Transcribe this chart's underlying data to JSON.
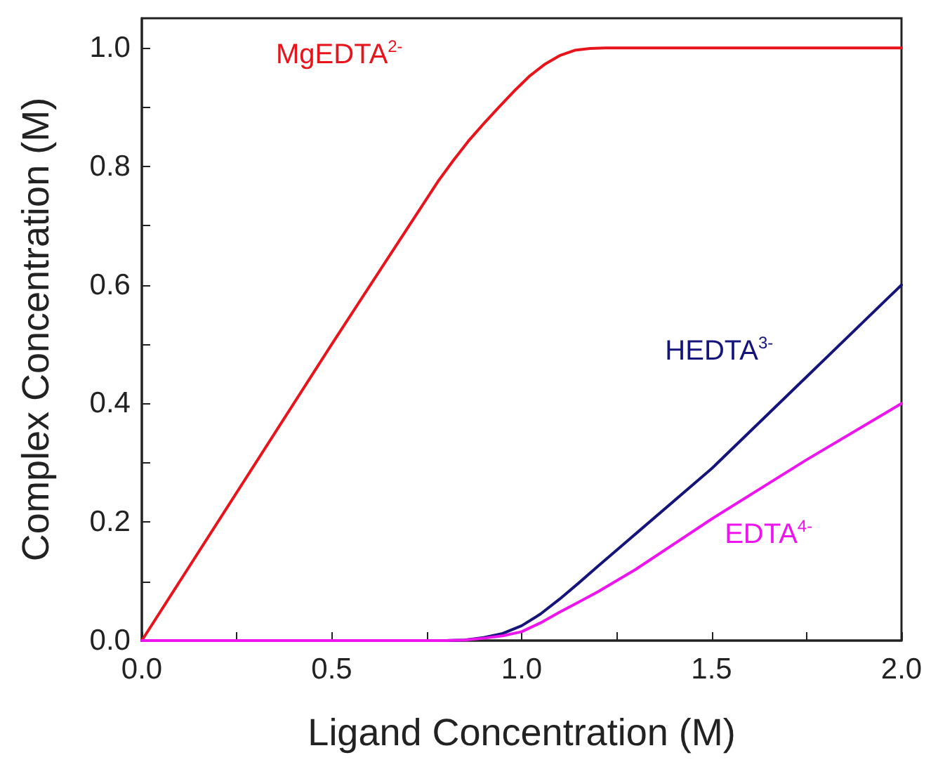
{
  "chart_data": {
    "type": "line",
    "xlabel": "Ligand Concentration (M)",
    "ylabel": "Complex Concentration (M)",
    "xlim": [
      0,
      2.0
    ],
    "ylim": [
      0,
      1.05
    ],
    "xticks": [
      {
        "value": 0,
        "label": "0.0"
      },
      {
        "value": 0.25,
        "label": null
      },
      {
        "value": 0.5,
        "label": "0.5"
      },
      {
        "value": 0.75,
        "label": null
      },
      {
        "value": 1,
        "label": "1.0"
      },
      {
        "value": 1.25,
        "label": null
      },
      {
        "value": 1.5,
        "label": "1.5"
      },
      {
        "value": 1.75,
        "label": null
      },
      {
        "value": 2,
        "label": "2.0"
      }
    ],
    "yticks": [
      {
        "value": 0,
        "label": "0.0"
      },
      {
        "value": 0.1,
        "label": null
      },
      {
        "value": 0.2,
        "label": "0.2"
      },
      {
        "value": 0.3,
        "label": null
      },
      {
        "value": 0.4,
        "label": "0.4"
      },
      {
        "value": 0.5,
        "label": null
      },
      {
        "value": 0.6,
        "label": "0.6"
      },
      {
        "value": 0.7,
        "label": null
      },
      {
        "value": 0.8,
        "label": "0.8"
      },
      {
        "value": 0.9,
        "label": null
      },
      {
        "value": 1,
        "label": "1.0"
      }
    ],
    "grid": false,
    "legend": false,
    "marker": "none",
    "line_style": "solid",
    "series": [
      {
        "name": "MgEDTA$^{2-}$",
        "color": "#e8141c",
        "x": [
          0,
          0.5,
          0.78,
          0.82,
          0.86,
          0.9,
          0.94,
          0.98,
          1.02,
          1.06,
          1.1,
          1.14,
          1.18,
          1.22,
          2.0
        ],
        "values": [
          0,
          0.5,
          0.775,
          0.81,
          0.843,
          0.872,
          0.9,
          0.927,
          0.952,
          0.972,
          0.987,
          0.996,
          0.999,
          1.0,
          1.0
        ]
      },
      {
        "name": "HEDTA$^{3-}$",
        "color": "#14147a",
        "x": [
          0,
          0.8,
          0.85,
          0.9,
          0.95,
          1.0,
          1.05,
          1.1,
          1.15,
          1.2,
          1.3,
          1.5,
          1.75,
          2.0
        ],
        "values": [
          0,
          0,
          0.001,
          0.005,
          0.012,
          0.025,
          0.045,
          0.07,
          0.097,
          0.125,
          0.18,
          0.29,
          0.445,
          0.6
        ]
      },
      {
        "name": "EDTA$^{4-}$",
        "color": "#ee14ee",
        "x": [
          0,
          0.8,
          0.85,
          0.9,
          0.95,
          1.0,
          1.05,
          1.1,
          1.15,
          1.2,
          1.3,
          1.5,
          1.75,
          2.0
        ],
        "values": [
          0,
          0,
          0.001,
          0.004,
          0.008,
          0.015,
          0.03,
          0.048,
          0.065,
          0.082,
          0.12,
          0.205,
          0.305,
          0.4
        ]
      }
    ]
  }
}
